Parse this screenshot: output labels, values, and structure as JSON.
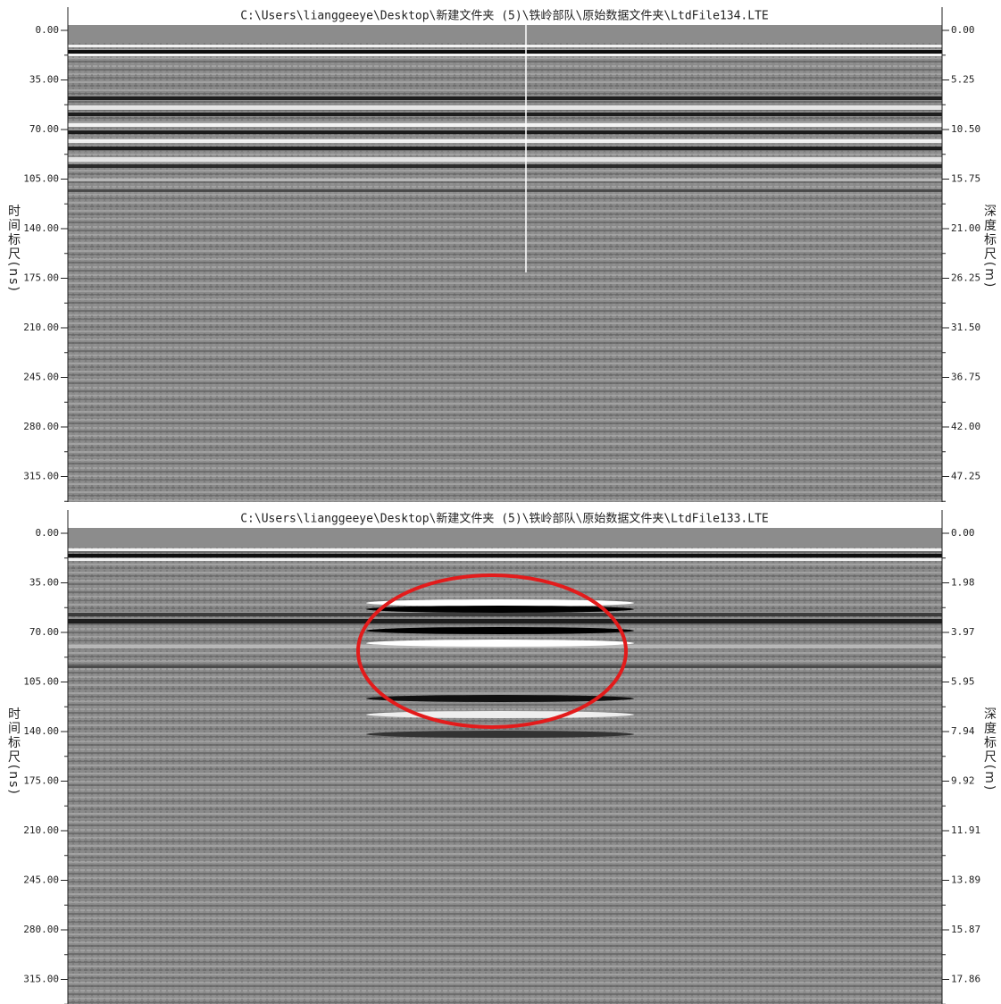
{
  "panels": [
    {
      "title": "C:\\Users\\lianggeeye\\Desktop\\新建文件夹 (5)\\铁岭部队\\原始数据文件夹\\LtdFile134.LTE",
      "left_axis_label": "时间标尺(ns)",
      "right_axis_label": "深度标尺(m)",
      "left_ticks": [
        "0.00",
        "35.00",
        "70.00",
        "105.00",
        "140.00",
        "175.00",
        "210.00",
        "245.00",
        "280.00",
        "315.00"
      ],
      "right_ticks": [
        "0.00",
        "5.25",
        "10.50",
        "15.75",
        "21.00",
        "26.25",
        "31.50",
        "36.75",
        "42.00",
        "47.25"
      ]
    },
    {
      "title": "C:\\Users\\lianggeeye\\Desktop\\新建文件夹 (5)\\铁岭部队\\原始数据文件夹\\LtdFile133.LTE",
      "left_axis_label": "时间标尺(ns)",
      "right_axis_label": "深度标尺(m)",
      "left_ticks": [
        "0.00",
        "35.00",
        "70.00",
        "105.00",
        "140.00",
        "175.00",
        "210.00",
        "245.00",
        "280.00",
        "315.00"
      ],
      "right_ticks": [
        "0.00",
        "1.98",
        "3.97",
        "5.95",
        "7.94",
        "9.92",
        "11.91",
        "13.89",
        "15.87",
        "17.86"
      ]
    }
  ]
}
